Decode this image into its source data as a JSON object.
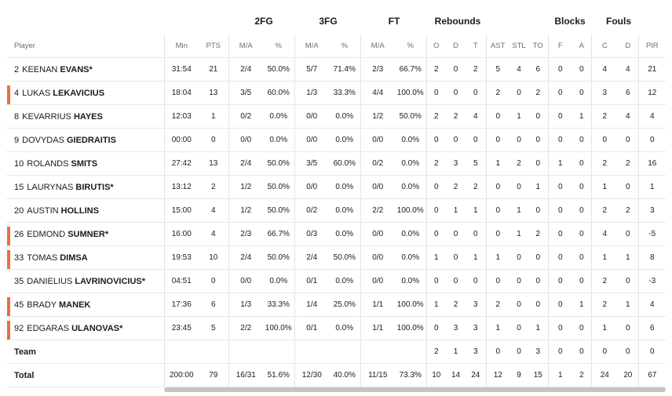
{
  "groups": {
    "fg2": "2FG",
    "fg3": "3FG",
    "ft": "FT",
    "rebounds": "Rebounds",
    "blocks": "Blocks",
    "fouls": "Fouls"
  },
  "headers": {
    "player": "Player",
    "min": "Min",
    "pts": "PTS",
    "fg2_ma": "M/A",
    "fg2_pct": "%",
    "fg3_ma": "M/A",
    "fg3_pct": "%",
    "ft_ma": "M/A",
    "ft_pct": "%",
    "reb_o": "O",
    "reb_d": "D",
    "reb_t": "T",
    "ast": "AST",
    "stl": "STL",
    "to": "TO",
    "blk_f": "F",
    "blk_a": "A",
    "foul_c": "C",
    "foul_d": "D",
    "pir": "PIR"
  },
  "players": [
    {
      "number": "2",
      "first": "KEENAN",
      "last": "EVANS*",
      "marked": false,
      "stats": [
        "31:54",
        "21",
        "2/4",
        "50.0%",
        "5/7",
        "71.4%",
        "2/3",
        "66.7%",
        "2",
        "0",
        "2",
        "5",
        "4",
        "6",
        "0",
        "0",
        "4",
        "4",
        "21"
      ]
    },
    {
      "number": "4",
      "first": "LUKAS",
      "last": "LEKAVICIUS",
      "marked": true,
      "stats": [
        "18:04",
        "13",
        "3/5",
        "60.0%",
        "1/3",
        "33.3%",
        "4/4",
        "100.0%",
        "0",
        "0",
        "0",
        "2",
        "0",
        "2",
        "0",
        "0",
        "3",
        "6",
        "12"
      ]
    },
    {
      "number": "8",
      "first": "KEVARRIUS",
      "last": "HAYES",
      "marked": false,
      "stats": [
        "12:03",
        "1",
        "0/2",
        "0.0%",
        "0/0",
        "0.0%",
        "1/2",
        "50.0%",
        "2",
        "2",
        "4",
        "0",
        "1",
        "0",
        "0",
        "1",
        "2",
        "4",
        "4"
      ]
    },
    {
      "number": "9",
      "first": "DOVYDAS",
      "last": "GIEDRAITIS",
      "marked": false,
      "stats": [
        "00:00",
        "0",
        "0/0",
        "0.0%",
        "0/0",
        "0.0%",
        "0/0",
        "0.0%",
        "0",
        "0",
        "0",
        "0",
        "0",
        "0",
        "0",
        "0",
        "0",
        "0",
        "0"
      ]
    },
    {
      "number": "10",
      "first": "ROLANDS",
      "last": "SMITS",
      "marked": false,
      "stats": [
        "27:42",
        "13",
        "2/4",
        "50.0%",
        "3/5",
        "60.0%",
        "0/2",
        "0.0%",
        "2",
        "3",
        "5",
        "1",
        "2",
        "0",
        "1",
        "0",
        "2",
        "2",
        "16"
      ]
    },
    {
      "number": "15",
      "first": "LAURYNAS",
      "last": "BIRUTIS*",
      "marked": false,
      "stats": [
        "13:12",
        "2",
        "1/2",
        "50.0%",
        "0/0",
        "0.0%",
        "0/0",
        "0.0%",
        "0",
        "2",
        "2",
        "0",
        "0",
        "1",
        "0",
        "0",
        "1",
        "0",
        "1"
      ]
    },
    {
      "number": "20",
      "first": "AUSTIN",
      "last": "HOLLINS",
      "marked": false,
      "stats": [
        "15:00",
        "4",
        "1/2",
        "50.0%",
        "0/2",
        "0.0%",
        "2/2",
        "100.0%",
        "0",
        "1",
        "1",
        "0",
        "1",
        "0",
        "0",
        "0",
        "2",
        "2",
        "3"
      ]
    },
    {
      "number": "26",
      "first": "EDMOND",
      "last": "SUMNER*",
      "marked": true,
      "stats": [
        "16:00",
        "4",
        "2/3",
        "66.7%",
        "0/3",
        "0.0%",
        "0/0",
        "0.0%",
        "0",
        "0",
        "0",
        "0",
        "1",
        "2",
        "0",
        "0",
        "4",
        "0",
        "-5"
      ]
    },
    {
      "number": "33",
      "first": "TOMAS",
      "last": "DIMSA",
      "marked": true,
      "stats": [
        "19:53",
        "10",
        "2/4",
        "50.0%",
        "2/4",
        "50.0%",
        "0/0",
        "0.0%",
        "1",
        "0",
        "1",
        "1",
        "0",
        "0",
        "0",
        "0",
        "1",
        "1",
        "8"
      ]
    },
    {
      "number": "35",
      "first": "DANIELIUS",
      "last": "LAVRINOVICIUS*",
      "marked": false,
      "stats": [
        "04:51",
        "0",
        "0/0",
        "0.0%",
        "0/1",
        "0.0%",
        "0/0",
        "0.0%",
        "0",
        "0",
        "0",
        "0",
        "0",
        "0",
        "0",
        "0",
        "2",
        "0",
        "-3"
      ]
    },
    {
      "number": "45",
      "first": "BRADY",
      "last": "MANEK",
      "marked": true,
      "stats": [
        "17:36",
        "6",
        "1/3",
        "33.3%",
        "1/4",
        "25.0%",
        "1/1",
        "100.0%",
        "1",
        "2",
        "3",
        "2",
        "0",
        "0",
        "0",
        "1",
        "2",
        "1",
        "4"
      ]
    },
    {
      "number": "92",
      "first": "EDGARAS",
      "last": "ULANOVAS*",
      "marked": true,
      "stats": [
        "23:45",
        "5",
        "2/2",
        "100.0%",
        "0/1",
        "0.0%",
        "1/1",
        "100.0%",
        "0",
        "3",
        "3",
        "1",
        "0",
        "1",
        "0",
        "0",
        "1",
        "0",
        "6"
      ]
    }
  ],
  "team": {
    "label": "Team",
    "stats": [
      "",
      "",
      "",
      "",
      "",
      "",
      "",
      "",
      "2",
      "1",
      "3",
      "0",
      "0",
      "3",
      "0",
      "0",
      "0",
      "0",
      "0"
    ]
  },
  "total": {
    "label": "Total",
    "stats": [
      "200:00",
      "79",
      "16/31",
      "51.6%",
      "12/30",
      "40.0%",
      "11/15",
      "73.3%",
      "10",
      "14",
      "24",
      "12",
      "9",
      "15",
      "1",
      "2",
      "24",
      "20",
      "67"
    ]
  },
  "colors": {
    "marker": "#ef6c3a"
  }
}
